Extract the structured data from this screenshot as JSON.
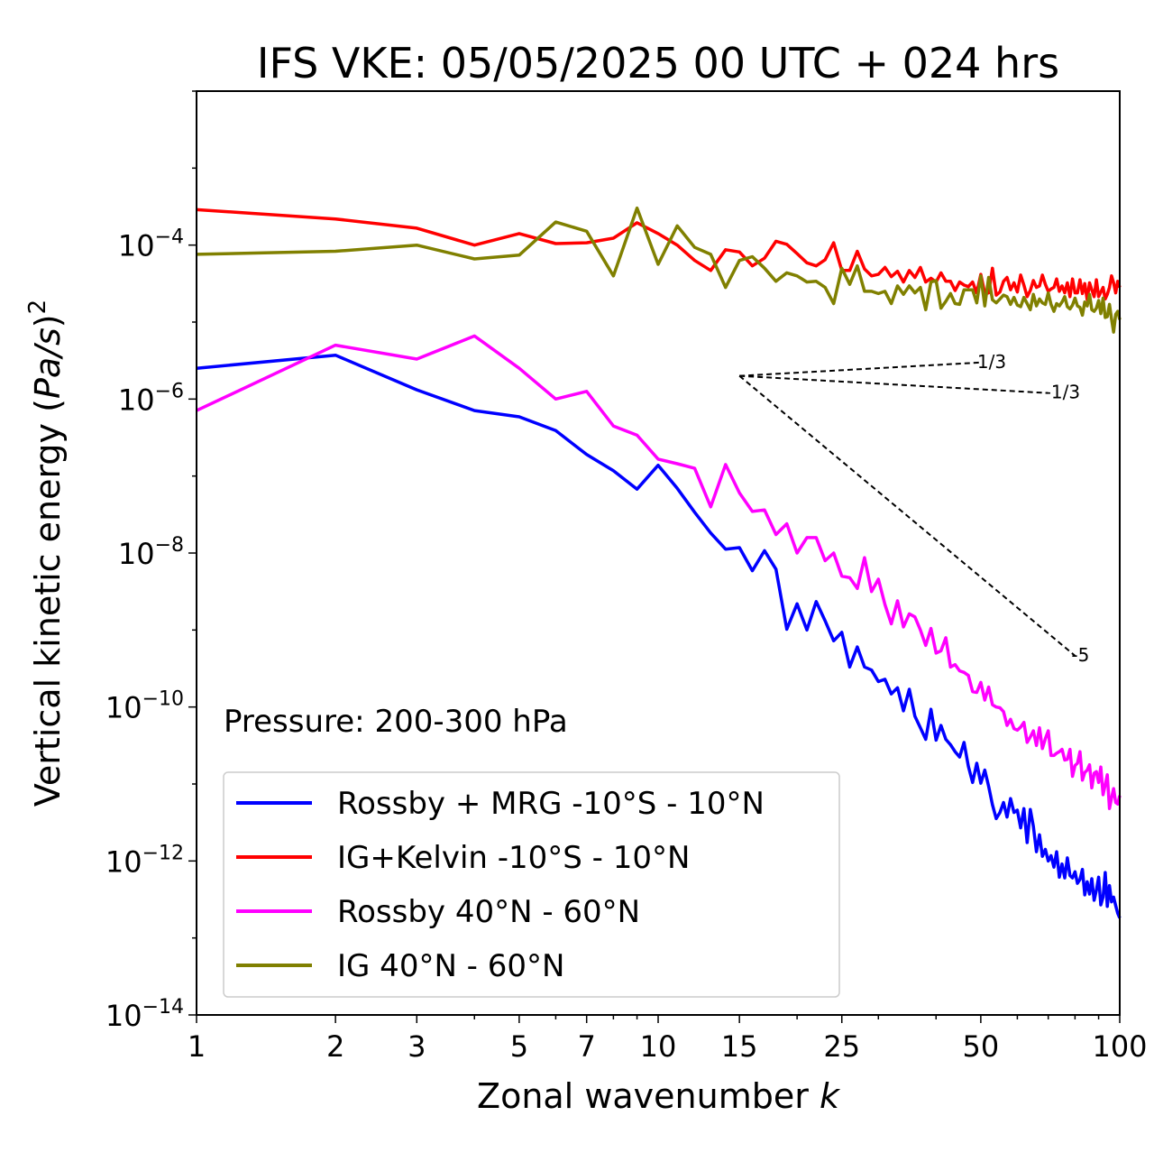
{
  "chart_data": {
    "type": "line",
    "title": "IFS VKE: 05/05/2025 00 UTC + 024 hrs",
    "xlabel": "Zonal wavenumber",
    "xlabel_var": "k",
    "ylabel_prefix": "Vertical kinetic energy (",
    "ylabel_var": "Pa/s",
    "ylabel_suffix": ")",
    "ylabel_exp": "2",
    "xscale": "log",
    "yscale": "log",
    "xlim": [
      1,
      100
    ],
    "ylim": [
      1e-14,
      0.01
    ],
    "x_ticks": [
      1,
      2,
      3,
      5,
      7,
      10,
      15,
      25,
      50,
      100
    ],
    "x_tick_labels": [
      "1",
      "2",
      "3",
      "5",
      "7",
      "10",
      "15",
      "25",
      "50",
      "100"
    ],
    "y_ticks": [
      {
        "value": 1e-14,
        "base": "10",
        "exp": "−14"
      },
      {
        "value": 1e-12,
        "base": "10",
        "exp": "−12"
      },
      {
        "value": 1e-10,
        "base": "10",
        "exp": "−10"
      },
      {
        "value": 1e-08,
        "base": "10",
        "exp": "−8"
      },
      {
        "value": 1e-06,
        "base": "10",
        "exp": "−6"
      },
      {
        "value": 0.0001,
        "base": "10",
        "exp": "−4"
      }
    ],
    "annotation": "Pressure: 200-300 hPa",
    "legend_position": "lower-left",
    "series": [
      {
        "name": "Rossby + MRG -10°S - 10°N",
        "color": "#0000ff",
        "log10_y": [
          -5.6,
          -5.43,
          -5.88,
          -6.15,
          -6.23,
          -6.41,
          -6.72,
          -6.93,
          -7.17,
          -6.86,
          -7.16,
          -7.47,
          -7.74,
          -7.95,
          -7.93,
          -8.23,
          -7.97,
          -8.21,
          -8.99,
          -8.66,
          -9.0,
          -8.63,
          -8.88,
          -9.14,
          -9.03,
          -9.48,
          -9.22,
          -9.48,
          -9.52,
          -9.67,
          -9.64,
          -9.83,
          -9.75,
          -10.05,
          -9.77,
          -10.12,
          -10.27,
          -10.42,
          -10.03,
          -10.43,
          -10.24,
          -10.42,
          -10.49,
          -10.58,
          -10.65,
          -10.46,
          -10.77,
          -10.98,
          -10.73,
          -10.99,
          -10.82,
          -11.03,
          -11.27,
          -11.45,
          -11.37,
          -11.24,
          -11.43,
          -11.19,
          -11.37,
          -11.34,
          -11.57,
          -11.32,
          -11.76,
          -11.33,
          -11.55,
          -11.88,
          -11.66,
          -11.94,
          -11.85,
          -12.0,
          -11.93,
          -12.08,
          -11.88,
          -12.21,
          -12.04,
          -12.22,
          -11.96,
          -12.19,
          -12.22,
          -12.14,
          -12.29,
          -12.24,
          -12.11,
          -12.44,
          -12.27,
          -12.43,
          -12.23,
          -12.51,
          -12.38,
          -12.21,
          -12.57,
          -12.47,
          -12.15,
          -12.59,
          -12.32,
          -12.53,
          -12.47,
          -12.58,
          -12.68,
          -12.74
        ]
      },
      {
        "name": "IG+Kelvin -10°S - 10°N",
        "color": "#ff0000",
        "log10_y": [
          -3.54,
          -3.66,
          -3.78,
          -4.0,
          -3.85,
          -3.98,
          -3.97,
          -3.91,
          -3.71,
          -3.85,
          -4.0,
          -4.2,
          -4.33,
          -4.06,
          -4.09,
          -4.27,
          -4.17,
          -3.95,
          -3.99,
          -4.11,
          -4.23,
          -4.27,
          -4.19,
          -3.97,
          -4.33,
          -4.33,
          -4.08,
          -4.31,
          -4.4,
          -4.38,
          -4.29,
          -4.41,
          -4.34,
          -4.48,
          -4.33,
          -4.42,
          -4.29,
          -4.48,
          -4.43,
          -4.48,
          -4.36,
          -4.47,
          -4.47,
          -4.59,
          -4.48,
          -4.52,
          -4.54,
          -4.48,
          -4.62,
          -4.38,
          -4.63,
          -4.62,
          -4.3,
          -4.65,
          -4.61,
          -4.47,
          -4.42,
          -4.58,
          -4.49,
          -4.61,
          -4.39,
          -4.52,
          -4.67,
          -4.59,
          -4.46,
          -4.55,
          -4.53,
          -4.39,
          -4.51,
          -4.6,
          -4.57,
          -4.55,
          -4.44,
          -4.6,
          -4.53,
          -4.62,
          -4.49,
          -4.67,
          -4.44,
          -4.62,
          -4.62,
          -4.45,
          -4.63,
          -4.5,
          -4.71,
          -4.49,
          -4.58,
          -4.67,
          -4.45,
          -4.67,
          -4.61,
          -4.55,
          -4.7,
          -4.64,
          -4.55,
          -4.4,
          -4.49,
          -4.62,
          -4.47,
          -4.55
        ]
      },
      {
        "name": "Rossby 40°N - 60°N",
        "color": "#ff00ff",
        "log10_y": [
          -6.15,
          -5.3,
          -5.48,
          -5.18,
          -5.6,
          -6.0,
          -5.9,
          -6.35,
          -6.47,
          -6.78,
          -6.84,
          -6.9,
          -7.4,
          -6.85,
          -7.22,
          -7.46,
          -7.44,
          -7.76,
          -7.62,
          -8.0,
          -7.8,
          -7.8,
          -8.1,
          -8.0,
          -8.3,
          -8.32,
          -8.46,
          -8.06,
          -8.5,
          -8.34,
          -8.67,
          -8.92,
          -8.62,
          -8.96,
          -8.79,
          -8.83,
          -9.0,
          -9.2,
          -8.98,
          -9.3,
          -9.27,
          -9.1,
          -9.48,
          -9.45,
          -9.53,
          -9.55,
          -9.59,
          -9.8,
          -9.81,
          -9.68,
          -9.91,
          -9.74,
          -9.97,
          -10.0,
          -10.01,
          -10.06,
          -10.24,
          -10.16,
          -10.28,
          -10.3,
          -10.26,
          -10.2,
          -10.46,
          -10.39,
          -10.31,
          -10.5,
          -10.27,
          -10.54,
          -10.41,
          -10.31,
          -10.63,
          -10.63,
          -10.6,
          -10.58,
          -10.55,
          -10.69,
          -10.68,
          -10.55,
          -10.9,
          -10.76,
          -10.73,
          -10.58,
          -10.95,
          -10.85,
          -10.82,
          -10.75,
          -11.05,
          -10.86,
          -10.84,
          -10.98,
          -10.78,
          -11.14,
          -11.01,
          -10.88,
          -11.32,
          -11.18,
          -11.06,
          -11.24,
          -11.26,
          -11.15
        ]
      },
      {
        "name": "IG 40°N - 60°N",
        "color": "#808000",
        "log10_y": [
          -4.12,
          -4.08,
          -4.0,
          -4.18,
          -4.13,
          -3.7,
          -3.82,
          -4.4,
          -3.52,
          -4.25,
          -3.75,
          -4.03,
          -4.12,
          -4.55,
          -4.2,
          -4.15,
          -4.3,
          -4.47,
          -4.36,
          -4.4,
          -4.48,
          -4.47,
          -4.55,
          -4.76,
          -4.3,
          -4.51,
          -4.27,
          -4.6,
          -4.6,
          -4.63,
          -4.6,
          -4.76,
          -4.53,
          -4.64,
          -4.53,
          -4.62,
          -4.55,
          -4.84,
          -4.48,
          -4.46,
          -4.82,
          -4.73,
          -4.63,
          -4.76,
          -4.77,
          -4.58,
          -4.58,
          -4.58,
          -4.75,
          -4.4,
          -4.79,
          -4.42,
          -4.71,
          -4.75,
          -4.7,
          -4.65,
          -4.67,
          -4.77,
          -4.68,
          -4.78,
          -4.8,
          -4.68,
          -4.76,
          -4.84,
          -4.64,
          -4.79,
          -4.7,
          -4.75,
          -4.77,
          -4.62,
          -4.77,
          -4.86,
          -4.76,
          -4.79,
          -4.74,
          -4.67,
          -4.8,
          -4.83,
          -4.78,
          -4.69,
          -4.79,
          -4.81,
          -4.91,
          -4.74,
          -4.79,
          -4.64,
          -4.84,
          -4.86,
          -4.82,
          -4.72,
          -4.89,
          -4.69,
          -4.94,
          -4.93,
          -4.77,
          -4.96,
          -5.13,
          -4.9,
          -4.86,
          -4.97
        ]
      }
    ],
    "reference_lines": [
      {
        "label": "1/3",
        "slope": 0.3333,
        "x_start": 15,
        "x_end": 50,
        "y_start": 2e-06
      },
      {
        "label": "-1/3",
        "slope": -0.3333,
        "x_start": 15,
        "x_end": 70,
        "y_start": 2e-06
      },
      {
        "label": "-5",
        "slope": -5,
        "x_start": 15,
        "x_end": 80,
        "y_start": 2e-06
      }
    ]
  }
}
